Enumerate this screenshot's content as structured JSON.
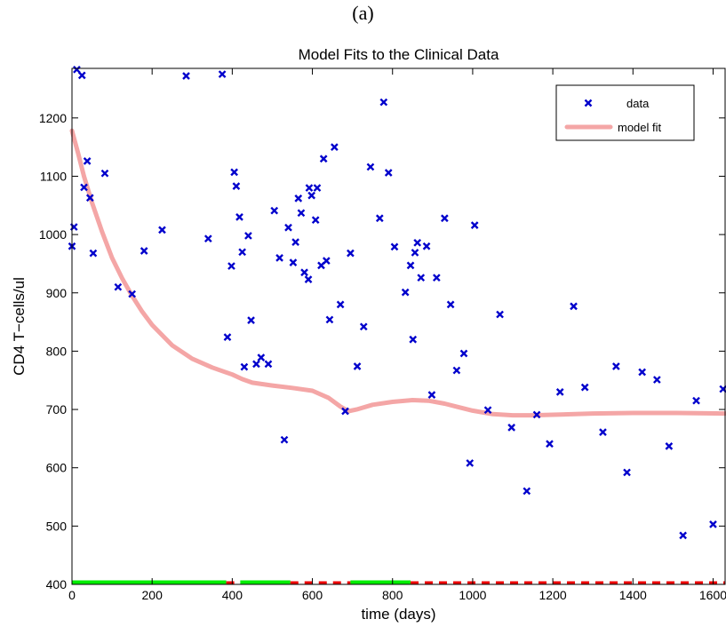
{
  "panel_label": "(a)",
  "chart_data": {
    "type": "scatter",
    "title": "Model Fits to the Clinical Data",
    "xlabel": "time (days)",
    "ylabel": "CD4 T−cells/ul",
    "xlim": [
      0,
      1630
    ],
    "ylim": [
      400,
      1285
    ],
    "xticks": [
      0,
      200,
      400,
      600,
      800,
      1000,
      1200,
      1400,
      1600
    ],
    "yticks": [
      400,
      500,
      600,
      700,
      800,
      900,
      1000,
      1100,
      1200
    ],
    "grid": false,
    "legend_position": "top-right",
    "colors": {
      "data": "#0000cc",
      "model": "#f4a6a6",
      "on_bar": "#00ee00",
      "off_bar": "#ee0000"
    },
    "series": [
      {
        "name": "data",
        "marker": "x",
        "points": [
          [
            0,
            980
          ],
          [
            5,
            1013
          ],
          [
            12,
            1283
          ],
          [
            25,
            1273
          ],
          [
            30,
            1081
          ],
          [
            38,
            1126
          ],
          [
            45,
            1063
          ],
          [
            53,
            968
          ],
          [
            82,
            1105
          ],
          [
            115,
            910
          ],
          [
            150,
            898
          ],
          [
            180,
            972
          ],
          [
            225,
            1008
          ],
          [
            285,
            1272
          ],
          [
            340,
            993
          ],
          [
            375,
            1275
          ],
          [
            388,
            824
          ],
          [
            398,
            946
          ],
          [
            405,
            1107
          ],
          [
            410,
            1083
          ],
          [
            418,
            1030
          ],
          [
            425,
            970
          ],
          [
            430,
            773
          ],
          [
            440,
            998
          ],
          [
            447,
            853
          ],
          [
            460,
            778
          ],
          [
            472,
            789
          ],
          [
            490,
            778
          ],
          [
            505,
            1041
          ],
          [
            518,
            960
          ],
          [
            530,
            648
          ],
          [
            540,
            1012
          ],
          [
            552,
            952
          ],
          [
            558,
            987
          ],
          [
            565,
            1062
          ],
          [
            572,
            1037
          ],
          [
            580,
            935
          ],
          [
            590,
            923
          ],
          [
            592,
            1080
          ],
          [
            598,
            1067
          ],
          [
            608,
            1025
          ],
          [
            612,
            1080
          ],
          [
            622,
            947
          ],
          [
            628,
            1130
          ],
          [
            635,
            955
          ],
          [
            643,
            854
          ],
          [
            655,
            1150
          ],
          [
            670,
            880
          ],
          [
            682,
            697
          ],
          [
            695,
            968
          ],
          [
            712,
            774
          ],
          [
            728,
            842
          ],
          [
            745,
            1116
          ],
          [
            768,
            1028
          ],
          [
            778,
            1227
          ],
          [
            790,
            1106
          ],
          [
            805,
            979
          ],
          [
            832,
            901
          ],
          [
            845,
            947
          ],
          [
            851,
            820
          ],
          [
            856,
            969
          ],
          [
            862,
            986
          ],
          [
            871,
            926
          ],
          [
            885,
            980
          ],
          [
            898,
            725
          ],
          [
            910,
            926
          ],
          [
            930,
            1028
          ],
          [
            945,
            880
          ],
          [
            960,
            767
          ],
          [
            978,
            796
          ],
          [
            993,
            608
          ],
          [
            1005,
            1016
          ],
          [
            1038,
            699
          ],
          [
            1068,
            863
          ],
          [
            1097,
            669
          ],
          [
            1135,
            560
          ],
          [
            1160,
            691
          ],
          [
            1192,
            641
          ],
          [
            1218,
            730
          ],
          [
            1252,
            877
          ],
          [
            1280,
            738
          ],
          [
            1325,
            661
          ],
          [
            1358,
            774
          ],
          [
            1385,
            592
          ],
          [
            1423,
            764
          ],
          [
            1460,
            751
          ],
          [
            1490,
            637
          ],
          [
            1525,
            484
          ],
          [
            1558,
            715
          ],
          [
            1600,
            503
          ],
          [
            1625,
            735
          ]
        ]
      },
      {
        "name": "model fit",
        "marker": "line",
        "points": [
          [
            0,
            1178
          ],
          [
            15,
            1140
          ],
          [
            30,
            1100
          ],
          [
            50,
            1055
          ],
          [
            75,
            1005
          ],
          [
            100,
            960
          ],
          [
            125,
            925
          ],
          [
            150,
            895
          ],
          [
            175,
            868
          ],
          [
            200,
            845
          ],
          [
            250,
            810
          ],
          [
            300,
            787
          ],
          [
            350,
            772
          ],
          [
            400,
            760
          ],
          [
            425,
            752
          ],
          [
            450,
            746
          ],
          [
            500,
            741
          ],
          [
            550,
            737
          ],
          [
            600,
            732
          ],
          [
            640,
            720
          ],
          [
            670,
            705
          ],
          [
            690,
            697
          ],
          [
            710,
            700
          ],
          [
            750,
            708
          ],
          [
            800,
            713
          ],
          [
            850,
            716
          ],
          [
            890,
            715
          ],
          [
            930,
            710
          ],
          [
            970,
            703
          ],
          [
            1000,
            698
          ],
          [
            1050,
            692
          ],
          [
            1100,
            690
          ],
          [
            1150,
            690
          ],
          [
            1200,
            691
          ],
          [
            1300,
            693
          ],
          [
            1400,
            694
          ],
          [
            1500,
            694
          ],
          [
            1630,
            693
          ]
        ]
      }
    ],
    "treatment_bars": [
      {
        "status": "on",
        "start": 0,
        "end": 385
      },
      {
        "status": "off",
        "start": 385,
        "end": 420
      },
      {
        "status": "on",
        "start": 420,
        "end": 545
      },
      {
        "status": "off",
        "start": 545,
        "end": 695
      },
      {
        "status": "on",
        "start": 695,
        "end": 845
      },
      {
        "status": "off",
        "start": 845,
        "end": 1630
      }
    ]
  }
}
